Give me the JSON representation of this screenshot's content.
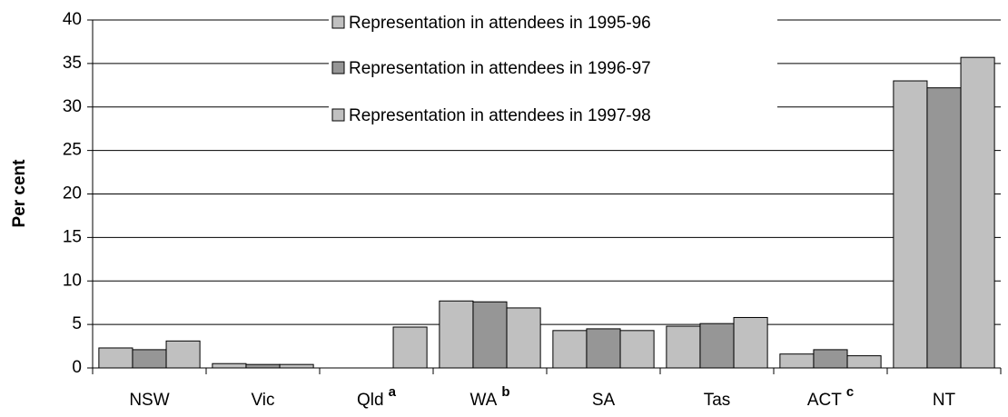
{
  "chart_data": {
    "type": "bar",
    "y_label": "Per cent",
    "categories": [
      "NSW",
      "Vic",
      "Qld",
      "WA",
      "SA",
      "Tas",
      "ACT",
      "NT"
    ],
    "category_notes": [
      null,
      null,
      "a",
      "b",
      null,
      null,
      "c",
      null
    ],
    "series": [
      {
        "name": "Representation in attendees in 1995-96",
        "color": "#c0c0c0",
        "values": [
          2.3,
          0.5,
          null,
          7.7,
          4.3,
          4.8,
          1.6,
          33.0
        ]
      },
      {
        "name": "Representation in attendees in 1996-97",
        "color": "#969696",
        "values": [
          2.1,
          0.4,
          null,
          7.6,
          4.5,
          5.1,
          2.1,
          32.2
        ]
      },
      {
        "name": "Representation in attendees in 1997-98",
        "color": "#c0c0c0",
        "values": [
          3.1,
          0.4,
          4.7,
          6.9,
          4.3,
          5.8,
          1.4,
          35.7
        ]
      }
    ],
    "ylim": [
      0,
      40
    ],
    "yticks": [
      0,
      5,
      10,
      15,
      20,
      25,
      30,
      35,
      40
    ],
    "grid": true
  }
}
